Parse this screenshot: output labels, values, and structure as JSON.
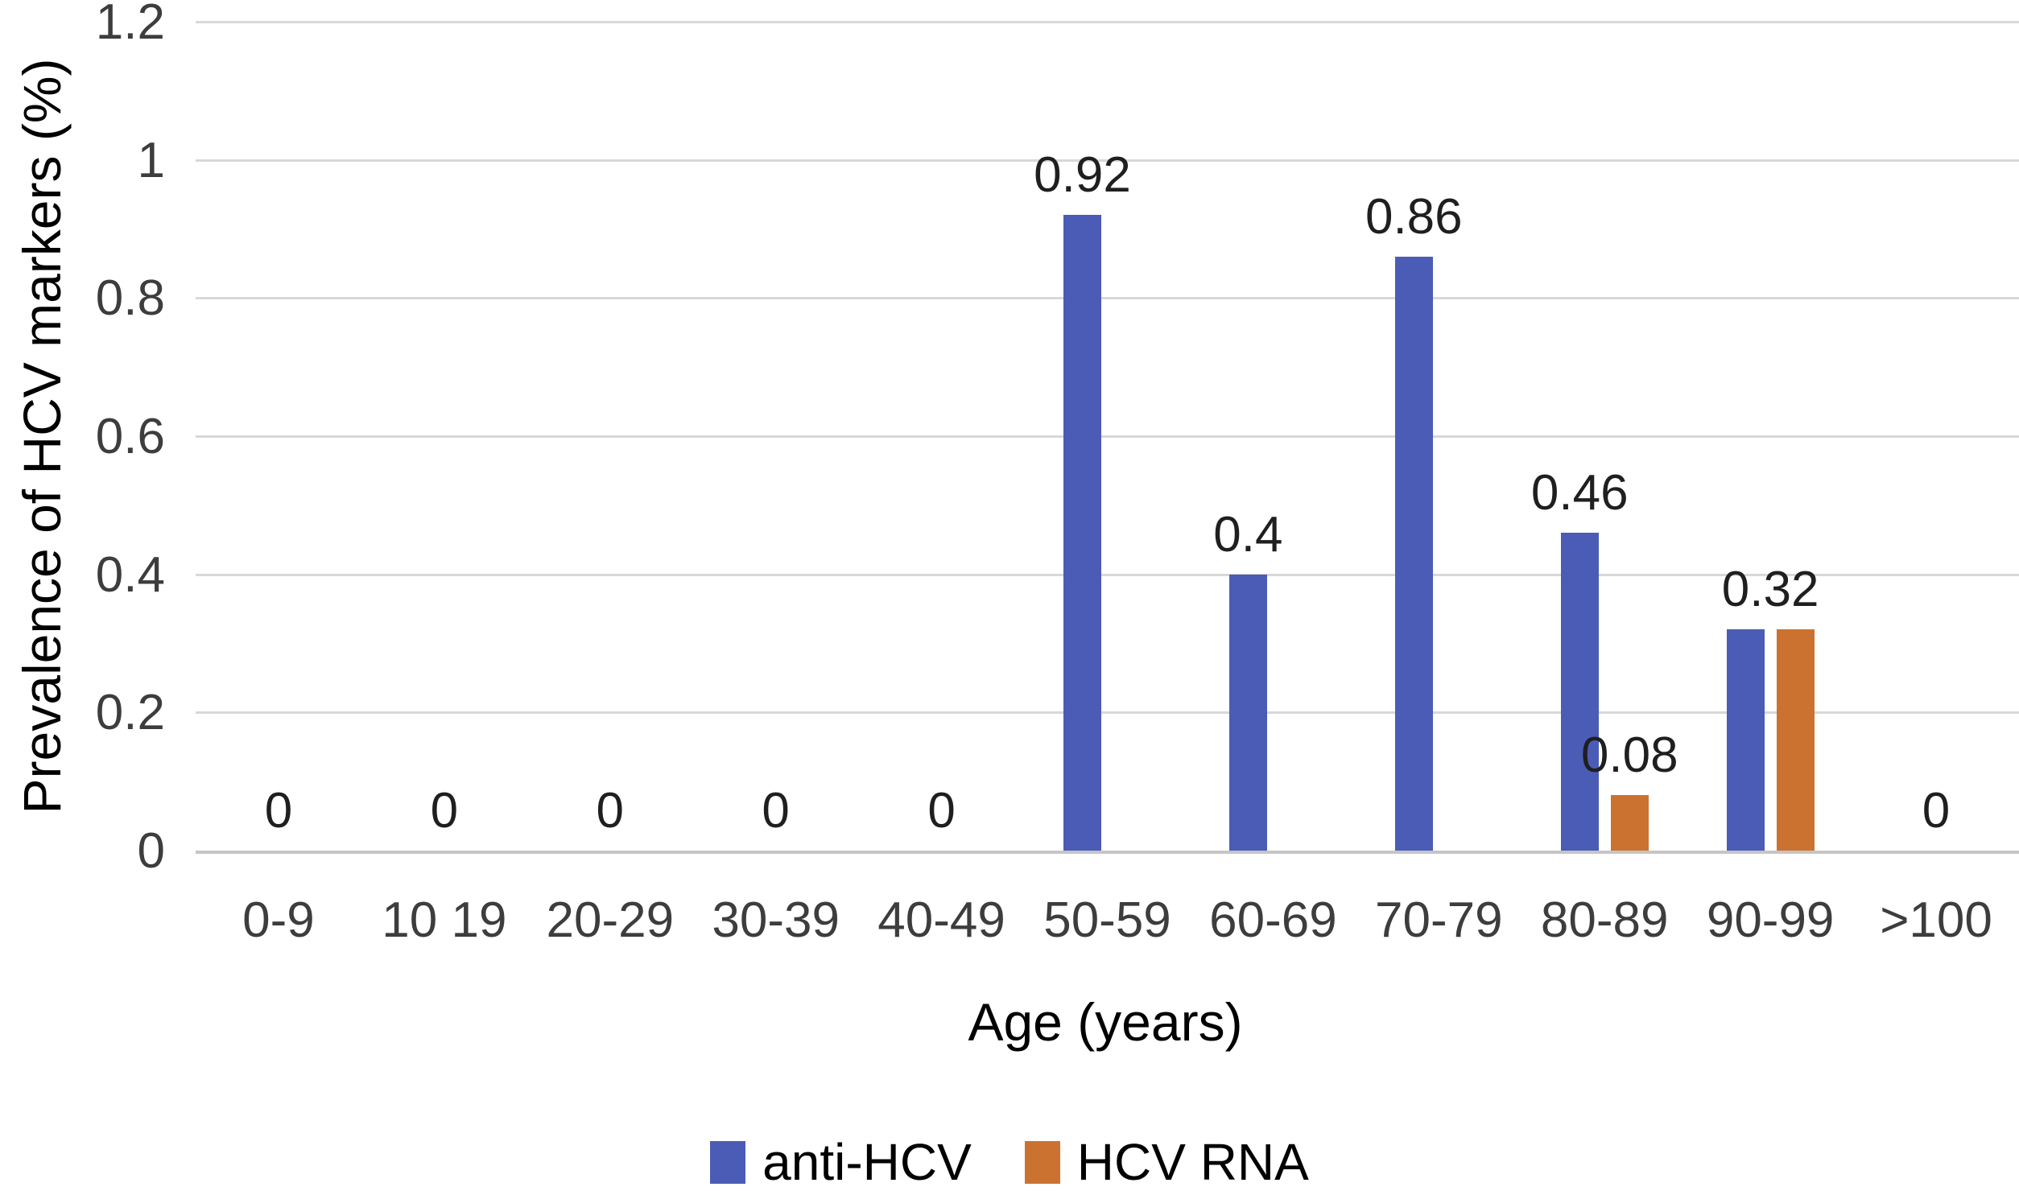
{
  "chart_data": {
    "type": "bar",
    "title": "",
    "xlabel": "Age (years)",
    "ylabel": "Prevalence of HCV markers (%)",
    "ylim": [
      0,
      1.2
    ],
    "ytick_labels": [
      "0",
      "0.2",
      "0.4",
      "0.6",
      "0.8",
      "1",
      "1.2"
    ],
    "ytick_values": [
      0,
      0.2,
      0.4,
      0.6,
      0.8,
      1,
      1.2
    ],
    "grid": "horizontal-gridlines-on",
    "legend_position": "bottom-center",
    "categories": [
      "0-9",
      "10 19",
      "20-29",
      "30-39",
      "40-49",
      "50-59",
      "60-69",
      "70-79",
      "80-89",
      "90-99",
      ">100"
    ],
    "series": [
      {
        "name": "anti-HCV",
        "color": "#4a5cb5",
        "values": [
          0,
          0,
          0,
          0,
          0,
          0.92,
          0.4,
          0.86,
          0.46,
          0.32,
          0
        ]
      },
      {
        "name": "HCV RNA",
        "color": "#cb7231",
        "values": [
          0,
          0,
          0,
          0,
          0,
          0,
          0,
          0,
          0.08,
          0.32,
          0
        ]
      }
    ],
    "data_labels": [
      {
        "category_index": 0,
        "text": "0",
        "anchor": "category"
      },
      {
        "category_index": 1,
        "text": "0",
        "anchor": "category"
      },
      {
        "category_index": 2,
        "text": "0",
        "anchor": "category"
      },
      {
        "category_index": 3,
        "text": "0",
        "anchor": "category"
      },
      {
        "category_index": 4,
        "text": "0",
        "anchor": "category"
      },
      {
        "category_index": 5,
        "text": "0.92",
        "anchor": "series0",
        "value": 0.92
      },
      {
        "category_index": 6,
        "text": "0.4",
        "anchor": "series0",
        "value": 0.4
      },
      {
        "category_index": 7,
        "text": "0.86",
        "anchor": "series0",
        "value": 0.86
      },
      {
        "category_index": 8,
        "text": "0.46",
        "anchor": "series0",
        "value": 0.46
      },
      {
        "category_index": 8,
        "text": "0.08",
        "anchor": "series1",
        "value": 0.08
      },
      {
        "category_index": 9,
        "text": "0.32",
        "anchor": "category",
        "value": 0.32
      },
      {
        "category_index": 10,
        "text": "0",
        "anchor": "category"
      }
    ],
    "colors": {
      "gridline": "#d8d8d8",
      "axis_line": "#c5c5c5",
      "tick_text": "#3d3d3d",
      "data_label_text": "#1f1f1f",
      "title_text": "#000000"
    }
  }
}
